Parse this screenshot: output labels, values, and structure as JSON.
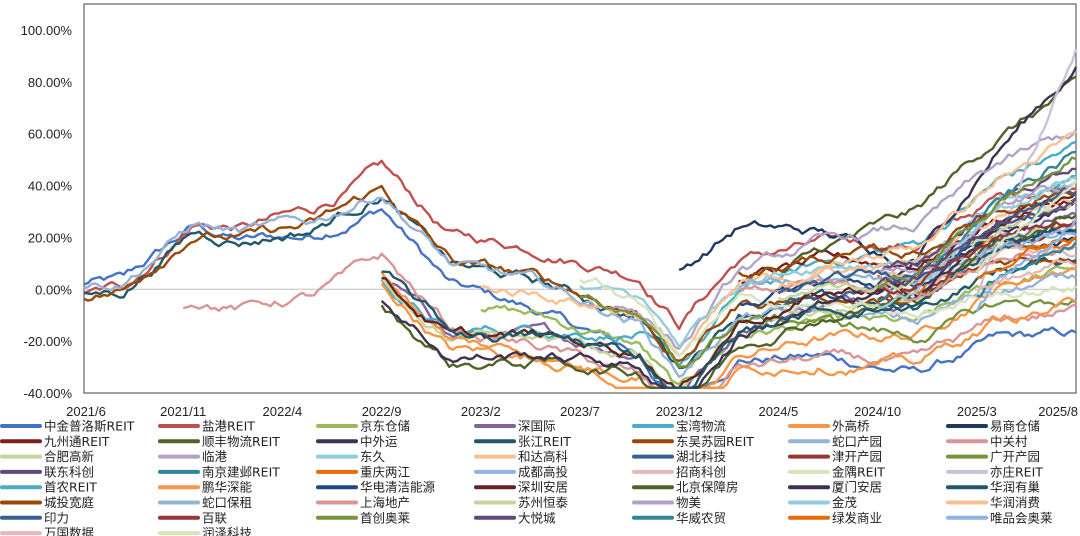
{
  "chart_data": {
    "type": "line",
    "title": "",
    "xlabel": "",
    "ylabel": "",
    "y_ticks": [
      "-40.00%",
      "-20.00%",
      "0.00%",
      "20.00%",
      "40.00%",
      "60.00%",
      "80.00%",
      "100.00%"
    ],
    "x_ticks": [
      "2021/6",
      "2021/11",
      "2022/4",
      "2022/9",
      "2023/2",
      "2023/7",
      "2023/12",
      "2024/5",
      "2024/10",
      "2025/3",
      "2025/8"
    ],
    "ylim": [
      -40,
      110
    ],
    "grid": false,
    "legend_position": "bottom",
    "series": [
      {
        "name": "中金普洛斯REIT",
        "color": "#4472c4",
        "start": "2021/6",
        "end_value": -18
      },
      {
        "name": "盐港REIT",
        "color": "#c0504d",
        "start": "2021/6",
        "end_value": 42
      },
      {
        "name": "京东仓储",
        "color": "#9bbb59",
        "start": "2023/2",
        "end_value": 8
      },
      {
        "name": "深国际",
        "color": "#8064a2",
        "start": "2022/9",
        "end_value": 30
      },
      {
        "name": "宝湾物流",
        "color": "#4bacc6",
        "start": "2022/9",
        "end_value": 55
      },
      {
        "name": "外高桥",
        "color": "#f79646",
        "start": "2022/9",
        "end_value": 10
      },
      {
        "name": "易商仓储",
        "color": "#1f3864",
        "start": "2023/12",
        "end_value": 20
      },
      {
        "name": "九州通REIT",
        "color": "#7b1f1f",
        "start": "2024/3",
        "end_value": 35
      },
      {
        "name": "顺丰物流REIT",
        "color": "#4f6228",
        "start": "2024/5",
        "end_value": 78
      },
      {
        "name": "中外运",
        "color": "#3f3151",
        "start": "2024/10",
        "end_value": 86
      },
      {
        "name": "张江REIT",
        "color": "#215867",
        "start": "2021/6",
        "end_value": 12
      },
      {
        "name": "东吴苏园REIT",
        "color": "#984807",
        "start": "2021/6",
        "end_value": 15
      },
      {
        "name": "蛇口产园",
        "color": "#95b3d7",
        "start": "2021/6",
        "end_value": 5
      },
      {
        "name": "中关村",
        "color": "#d99694",
        "start": "2021/11",
        "end_value": -8
      },
      {
        "name": "合肥高新",
        "color": "#c3d69b",
        "start": "2022/9",
        "end_value": 25
      },
      {
        "name": "临港",
        "color": "#b3a2c7",
        "start": "2023/7",
        "end_value": 60
      },
      {
        "name": "东久",
        "color": "#93cddd",
        "start": "2023/7",
        "end_value": 40
      },
      {
        "name": "和达高科",
        "color": "#fac090",
        "start": "2023/2",
        "end_value": 38
      },
      {
        "name": "湖北科技",
        "color": "#376092",
        "start": "2024/5",
        "end_value": 32
      },
      {
        "name": "津开产园",
        "color": "#953735",
        "start": "2024/10",
        "end_value": 28
      },
      {
        "name": "广开产园",
        "color": "#77933c",
        "start": "2023/7",
        "end_value": -4
      },
      {
        "name": "联东科创",
        "color": "#604a7b",
        "start": "2024/10",
        "end_value": 48
      },
      {
        "name": "南京建邺REIT",
        "color": "#31859c",
        "start": "2024/10",
        "end_value": 52
      },
      {
        "name": "重庆两江",
        "color": "#e46c0a",
        "start": "2024/10",
        "end_value": 18
      },
      {
        "name": "成都高投",
        "color": "#8eb4e3",
        "start": "2024/10",
        "end_value": 22
      },
      {
        "name": "招商科创",
        "color": "#e6b9b8",
        "start": "2024/10",
        "end_value": 14
      },
      {
        "name": "金隅REIT",
        "color": "#d7e4bd",
        "start": "2023/7",
        "end_value": 2
      },
      {
        "name": "亦庄REIT",
        "color": "#ccc1da",
        "start": "2025/3",
        "end_value": 92
      },
      {
        "name": "首农REIT",
        "color": "#4bacc6",
        "start": "2025/3",
        "end_value": 45
      },
      {
        "name": "鹏华深能",
        "color": "#f79646",
        "start": "2022/9",
        "end_value": -6
      },
      {
        "name": "华电清洁能源",
        "color": "#1f497d",
        "start": "2024/3",
        "end_value": 26
      },
      {
        "name": "深圳安居",
        "color": "#632423",
        "start": "2022/9",
        "end_value": 36
      },
      {
        "name": "北京保障房",
        "color": "#4f6228",
        "start": "2022/9",
        "end_value": 30
      },
      {
        "name": "厦门安居",
        "color": "#3f3151",
        "start": "2022/9",
        "end_value": 33
      },
      {
        "name": "华润有巢",
        "color": "#215867",
        "start": "2022/9",
        "end_value": 24
      },
      {
        "name": "城投宽庭",
        "color": "#984807",
        "start": "2024/3",
        "end_value": 40
      },
      {
        "name": "蛇口保租",
        "color": "#95b3d7",
        "start": "2024/3",
        "end_value": 20
      },
      {
        "name": "上海地产",
        "color": "#d99694",
        "start": "2024/3",
        "end_value": 16
      },
      {
        "name": "苏州恒泰",
        "color": "#c3d69b",
        "start": "2024/5",
        "end_value": 34
      },
      {
        "name": "物美",
        "color": "#b3a2c7",
        "start": "2024/10",
        "end_value": 42
      },
      {
        "name": "金茂",
        "color": "#93cddd",
        "start": "2024/10",
        "end_value": 46
      },
      {
        "name": "华润消费",
        "color": "#fac090",
        "start": "2024/5",
        "end_value": 58
      },
      {
        "name": "印力",
        "color": "#376092",
        "start": "2024/5",
        "end_value": 38
      },
      {
        "name": "百联",
        "color": "#953735",
        "start": "2024/10",
        "end_value": 26
      },
      {
        "name": "首创奥莱",
        "color": "#77933c",
        "start": "2024/10",
        "end_value": 50
      },
      {
        "name": "大悦城",
        "color": "#604a7b",
        "start": "2024/10",
        "end_value": 36
      },
      {
        "name": "华威农贸",
        "color": "#31859c",
        "start": "2025/3",
        "end_value": 20
      },
      {
        "name": "绿发商业",
        "color": "#e46c0a",
        "start": "2025/3",
        "end_value": 22
      },
      {
        "name": "唯品会奥莱",
        "color": "#8eb4e3",
        "start": "2025/3",
        "end_value": 30
      },
      {
        "name": "万国数据",
        "color": "#e6b9b8",
        "start": "2025/3",
        "end_value": 10
      },
      {
        "name": "润泽科技",
        "color": "#d7e4bd",
        "start": "2025/3",
        "end_value": 40
      }
    ]
  }
}
